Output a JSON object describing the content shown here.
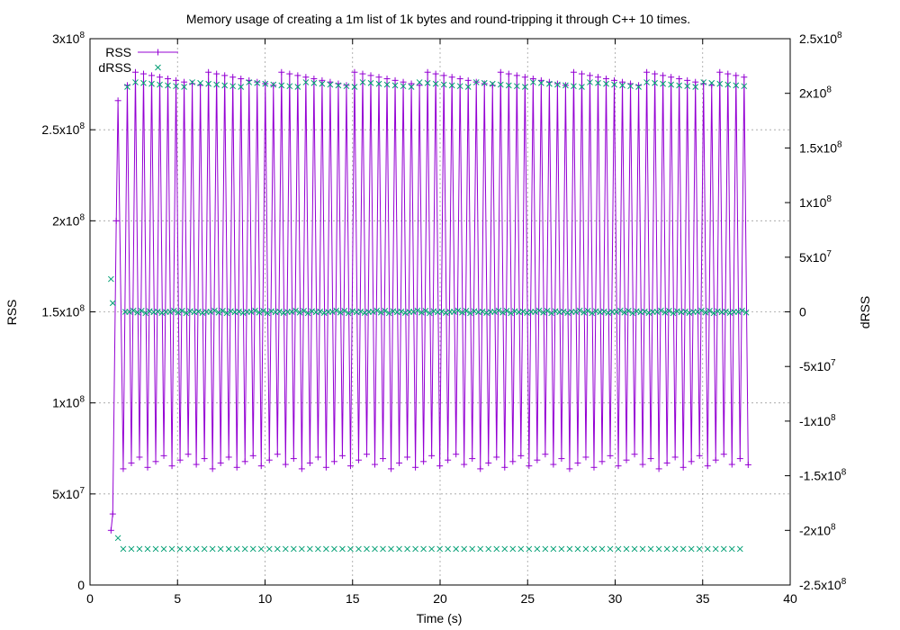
{
  "chart_data": {
    "type": "line",
    "title": "Memory usage of creating a 1m list of 1k bytes and round-tripping it through C++ 10 times.",
    "xlabel": "Time (s)",
    "ylabel": "RSS",
    "y2label": "dRSS",
    "xlim": [
      0,
      40
    ],
    "ylim": [
      0,
      300000000
    ],
    "y2lim": [
      -250000000,
      250000000
    ],
    "grid": true,
    "legend_position": "top-left",
    "x_ticks": [
      "0",
      "5",
      "10",
      "15",
      "20",
      "25",
      "30",
      "35",
      "40"
    ],
    "y_ticks": [
      {
        "mant": "0",
        "exp": ""
      },
      {
        "mant": "5x10",
        "exp": "7"
      },
      {
        "mant": "1x10",
        "exp": "8"
      },
      {
        "mant": "1.5x10",
        "exp": "8"
      },
      {
        "mant": "2x10",
        "exp": "8"
      },
      {
        "mant": "2.5x10",
        "exp": "8"
      },
      {
        "mant": "3x10",
        "exp": "8"
      }
    ],
    "y2_ticks": [
      {
        "mant": "-2.5x10",
        "exp": "8"
      },
      {
        "mant": "-2x10",
        "exp": "8"
      },
      {
        "mant": "-1.5x10",
        "exp": "8"
      },
      {
        "mant": "-1x10",
        "exp": "8"
      },
      {
        "mant": "-5x10",
        "exp": "7"
      },
      {
        "mant": "0",
        "exp": ""
      },
      {
        "mant": "5x10",
        "exp": "7"
      },
      {
        "mant": "1x10",
        "exp": "8"
      },
      {
        "mant": "1.5x10",
        "exp": "8"
      },
      {
        "mant": "2x10",
        "exp": "8"
      },
      {
        "mant": "2.5x10",
        "exp": "8"
      }
    ],
    "series": [
      {
        "name": "RSS",
        "axis": "y",
        "color": "#9400d3",
        "marker": "plus",
        "line": true,
        "startup": [
          [
            1.2,
            30000000
          ],
          [
            1.3,
            39000000
          ],
          [
            1.5,
            200000000
          ],
          [
            1.6,
            266000000
          ]
        ],
        "cycle_start": 1.9,
        "cycle_end": 37.6,
        "cycles": 77,
        "low_value": 67000000,
        "high_value": 278000000
      },
      {
        "name": "dRSS",
        "axis": "y2",
        "color": "#009e73",
        "marker": "x",
        "line": false,
        "startup": [
          [
            1.2,
            30000000
          ],
          [
            1.3,
            8000000
          ],
          [
            1.6,
            -207000000
          ]
        ],
        "cycle_start": 1.9,
        "cycle_end": 37.6,
        "cycles": 77,
        "low_value": -217000000,
        "high_value": 208000000,
        "zero_value": 0
      }
    ]
  }
}
